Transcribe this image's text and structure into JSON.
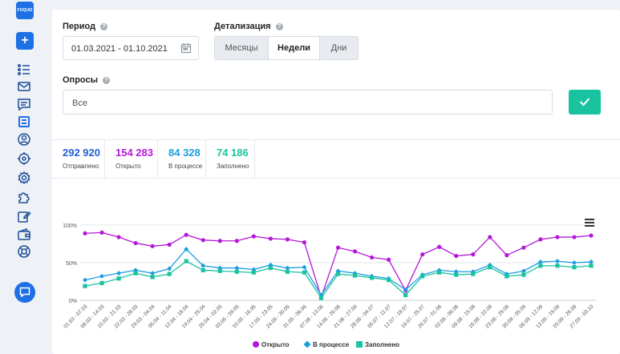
{
  "brand": {
    "logo_text": "FOQUIZ",
    "accent": "#1f6fe5",
    "success": "#19c3a0"
  },
  "sidebar": {
    "add_label": "+",
    "icons": [
      "list-icon",
      "mail-icon",
      "message-icon",
      "surveys-icon",
      "user-icon",
      "target-icon",
      "settings-icon",
      "puzzle-icon",
      "edit-icon",
      "wallet-icon",
      "help-lifebuoy-icon"
    ],
    "chat_icon": "chat-icon"
  },
  "filters": {
    "period_label": "Период",
    "period_value": "01.03.2021 - 01.10.2021",
    "detail_label": "Детализация",
    "detail_options": [
      "Месяцы",
      "Недели",
      "Дни"
    ],
    "detail_selected": "Недели",
    "surveys_label": "Опросы",
    "surveys_value": "Все",
    "help_glyph": "?"
  },
  "stats": [
    {
      "value": "292 920",
      "caption": "Отправлено",
      "color": "#1f5fd6"
    },
    {
      "value": "154 283",
      "caption": "Открыто",
      "color": "#b418d8"
    },
    {
      "value": "84 328",
      "caption": "В процессе",
      "color": "#1b9de0"
    },
    {
      "value": "74 186",
      "caption": "Заполнено",
      "color": "#19c3a0"
    }
  ],
  "chart_data": {
    "type": "line",
    "categories": [
      "01.03 - 07.03",
      "08.03 - 14.03",
      "15.03 - 21.03",
      "22.03 - 28.03",
      "29.03 - 04.04",
      "05.04 - 11.04",
      "12.04 - 18.04",
      "19.04 - 25.04",
      "26.04 - 02.05",
      "03.05 - 09.05",
      "10.05 - 16.05",
      "17.05 - 23.05",
      "24.05 - 30.05",
      "31.05 - 06.06",
      "07.06 - 13.06",
      "14.06 - 20.06",
      "21.06 - 27.06",
      "28.06 - 04.07",
      "05.07 - 11.07",
      "12.07 - 18.07",
      "19.07 - 25.07",
      "26.07 - 01.08",
      "02.08 - 08.08",
      "09.08 - 15.08",
      "16.08 - 22.08",
      "23.08 - 29.08",
      "30.08 - 05.09",
      "06.09 - 12.09",
      "13.09 - 19.09",
      "20.09 - 26.09",
      "27.09 - 03.10"
    ],
    "series": [
      {
        "name": "Открыто",
        "color": "#b418d8",
        "marker": "circle",
        "values": [
          89,
          90,
          84,
          76,
          72,
          74,
          87,
          80,
          79,
          79,
          85,
          82,
          81,
          77,
          4,
          70,
          65,
          57,
          54,
          13,
          61,
          71,
          59,
          61,
          84,
          60,
          70,
          81,
          84,
          84,
          86
        ]
      },
      {
        "name": "В процессе",
        "color": "#1b9de0",
        "marker": "diamond",
        "values": [
          27,
          32,
          36,
          40,
          36,
          42,
          68,
          46,
          43,
          43,
          41,
          47,
          43,
          44,
          7,
          39,
          36,
          32,
          29,
          14,
          34,
          40,
          38,
          38,
          47,
          35,
          39,
          51,
          52,
          50,
          51
        ]
      },
      {
        "name": "Заполнено",
        "color": "#19c3a0",
        "marker": "square",
        "values": [
          19,
          23,
          29,
          36,
          31,
          35,
          52,
          40,
          39,
          38,
          37,
          43,
          38,
          37,
          3,
          35,
          33,
          30,
          27,
          7,
          32,
          37,
          34,
          35,
          44,
          32,
          34,
          46,
          46,
          44,
          46
        ]
      }
    ],
    "yticks": [
      "0%",
      "50%",
      "100%"
    ],
    "ylim": [
      0,
      100
    ],
    "grid": true,
    "legend": "bottom-center"
  }
}
